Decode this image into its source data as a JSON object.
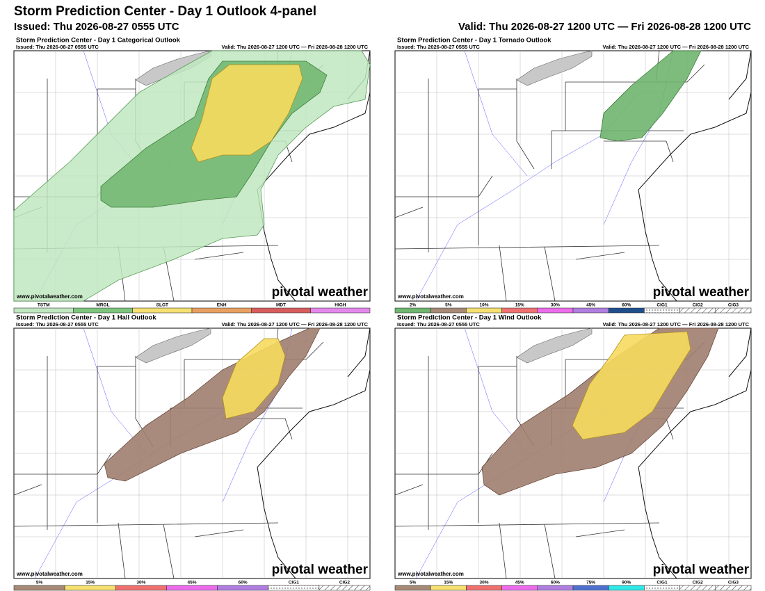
{
  "header": {
    "title": "Storm Prediction Center - Day 1 Outlook 4-panel",
    "issued": "Issued: Thu 2026-08-27 0555 UTC",
    "valid": "Valid: Thu 2026-08-27 1200 UTC — Fri 2026-08-28 1200 UTC"
  },
  "panels": [
    {
      "title": "Storm Prediction Center - Day 1 Categorical Outlook",
      "issued": "Issued: Thu 2026-08-27 0555 UTC",
      "valid": "Valid: Thu 2026-08-27 1200 UTC — Fri 2026-08-28 1200 UTC",
      "url": "www.pivotalweather.com",
      "brand": "pivotal weather",
      "legend": [
        {
          "label": "TSTM",
          "color": "#c0e8c0"
        },
        {
          "label": "MRGL",
          "color": "#7dc57d"
        },
        {
          "label": "SLGT",
          "color": "#f6e070"
        },
        {
          "label": "ENH",
          "color": "#e8a060"
        },
        {
          "label": "MDT",
          "color": "#d85c5c"
        },
        {
          "label": "HIGH",
          "color": "#e488ee"
        }
      ]
    },
    {
      "title": "Storm Prediction Center - Day 1 Tornado Outlook",
      "issued": "Issued: Thu 2026-08-27 0555 UTC",
      "valid": "Valid: Thu 2026-08-27 1200 UTC — Fri 2026-08-28 1200 UTC",
      "url": "www.pivotalweather.com",
      "brand": "pivotal weather",
      "legend": [
        {
          "label": "2%",
          "color": "#6fb56f"
        },
        {
          "label": "5%",
          "color": "#a68a76"
        },
        {
          "label": "10%",
          "color": "#f6e070"
        },
        {
          "label": "15%",
          "color": "#f07070"
        },
        {
          "label": "30%",
          "color": "#ec6cec"
        },
        {
          "label": "45%",
          "color": "#b07ee0"
        },
        {
          "label": "60%",
          "color": "#1e4f8c"
        },
        {
          "label": "CIG1"
        },
        {
          "label": "CIG2"
        },
        {
          "label": "CIG3"
        }
      ]
    },
    {
      "title": "Storm Prediction Center - Day 1 Hail Outlook",
      "issued": "Issued: Thu 2026-08-27 0555 UTC",
      "valid": "Valid: Thu 2026-08-27 1200 UTC — Fri 2026-08-28 1200 UTC",
      "url": "www.pivotalweather.com",
      "brand": "pivotal weather",
      "legend": [
        {
          "label": "5%",
          "color": "#a68a76"
        },
        {
          "label": "15%",
          "color": "#f6e070"
        },
        {
          "label": "30%",
          "color": "#f07070"
        },
        {
          "label": "45%",
          "color": "#ec6cec"
        },
        {
          "label": "60%",
          "color": "#b07ee0"
        },
        {
          "label": "CIG1"
        },
        {
          "label": "CIG2"
        }
      ]
    },
    {
      "title": "Storm Prediction Center - Day 1 Wind Outlook",
      "issued": "Issued: Thu 2026-08-27 0555 UTC",
      "valid": "Valid: Thu 2026-08-27 1200 UTC — Fri 2026-08-28 1200 UTC",
      "url": "www.pivotalweather.com",
      "brand": "pivotal weather",
      "legend": [
        {
          "label": "5%",
          "color": "#a68a76"
        },
        {
          "label": "15%",
          "color": "#f6e070"
        },
        {
          "label": "30%",
          "color": "#f07070"
        },
        {
          "label": "45%",
          "color": "#ec6cec"
        },
        {
          "label": "60%",
          "color": "#b07ee0"
        },
        {
          "label": "75%",
          "color": "#5070d0"
        },
        {
          "label": "90%",
          "color": "#30e8e8"
        },
        {
          "label": "CIG1"
        },
        {
          "label": "CIG2"
        },
        {
          "label": "CIG3"
        }
      ]
    }
  ]
}
